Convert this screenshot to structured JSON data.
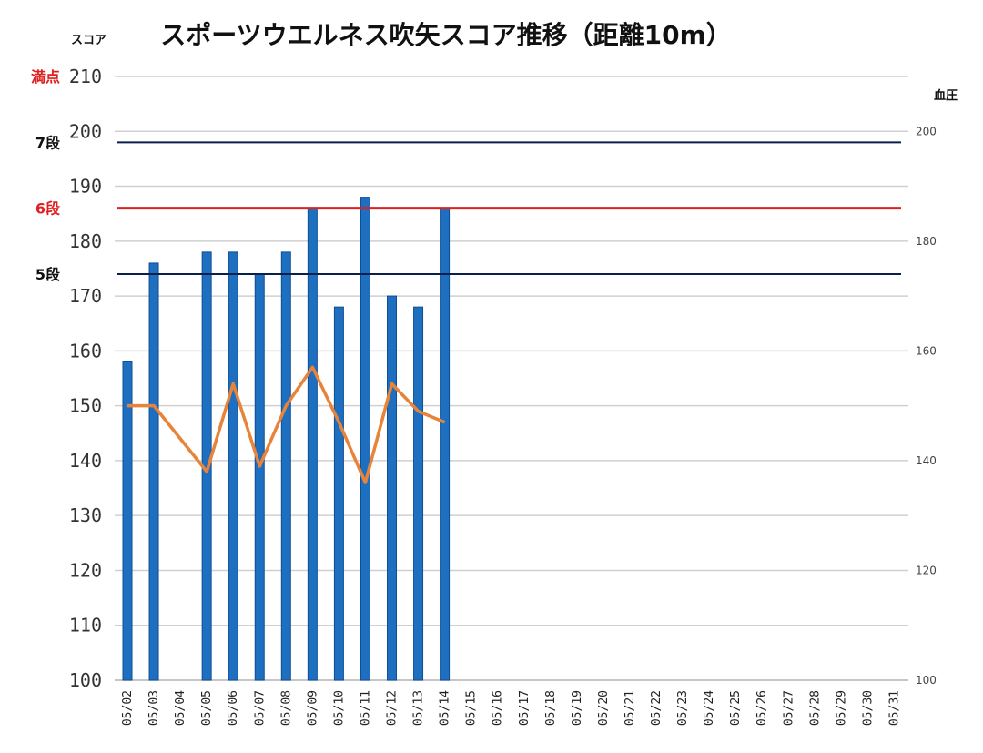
{
  "chart_data": {
    "type": "bar",
    "title": "スポーツウエルネス吹矢スコア推移（距離10m）",
    "ylabel": "スコア",
    "y2label": "血圧",
    "ylim": [
      100,
      210
    ],
    "yticks": [
      100,
      110,
      120,
      130,
      140,
      150,
      160,
      170,
      180,
      190,
      200,
      210
    ],
    "y2lim": [
      100,
      210
    ],
    "y2ticks": [
      100,
      120,
      140,
      160,
      180,
      200
    ],
    "categories": [
      "05/02",
      "05/03",
      "05/04",
      "05/05",
      "05/06",
      "05/07",
      "05/08",
      "05/09",
      "05/10",
      "05/11",
      "05/12",
      "05/13",
      "05/14",
      "05/15",
      "05/16",
      "05/17",
      "05/18",
      "05/19",
      "05/20",
      "05/21",
      "05/22",
      "05/23",
      "05/24",
      "05/25",
      "05/26",
      "05/27",
      "05/28",
      "05/29",
      "05/30",
      "05/31"
    ],
    "series": [
      {
        "kind": "bar",
        "axis": "left",
        "color": "#1f6fc1",
        "values": [
          158,
          176,
          null,
          178,
          178,
          174,
          178,
          186,
          168,
          188,
          170,
          168,
          186,
          null,
          null,
          null,
          null,
          null,
          null,
          null,
          null,
          null,
          null,
          null,
          null,
          null,
          null,
          null,
          null,
          null
        ]
      },
      {
        "kind": "line",
        "axis": "right",
        "color": "#e8833a",
        "values": [
          150,
          150,
          null,
          138,
          154,
          139,
          150,
          157,
          147,
          136,
          154,
          149,
          147,
          null,
          null,
          null,
          null,
          null,
          null,
          null,
          null,
          null,
          null,
          null,
          null,
          null,
          null,
          null,
          null,
          null
        ]
      }
    ],
    "reference_lines": [
      {
        "label": "満点",
        "value": 210,
        "color": "#cccccc",
        "label_color": "#e02020"
      },
      {
        "label": "7段",
        "value": 198,
        "color": "#0b1f4d",
        "label_color": "#111111"
      },
      {
        "label": "6段",
        "value": 186,
        "color": "#e02020",
        "label_color": "#e02020"
      },
      {
        "label": "5段",
        "value": 174,
        "color": "#0b1f4d",
        "label_color": "#111111"
      }
    ],
    "grid": true
  }
}
